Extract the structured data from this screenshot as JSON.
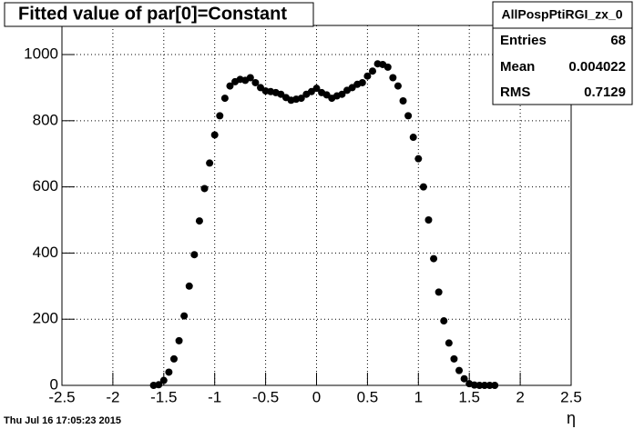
{
  "chart_data": {
    "type": "scatter",
    "title": "Fitted value of par[0]=Constant",
    "x_label": "η",
    "timestamp": "Thu Jul 16 17:05:23 2015",
    "stats": {
      "name": "AllPospPtiRGI_zx_0",
      "rows": [
        [
          "Entries",
          68
        ],
        [
          "Mean",
          0.004022
        ],
        [
          "RMS",
          0.7129
        ]
      ]
    },
    "color": "#000000",
    "xlim": [
      -2.5,
      2.5
    ],
    "ylim": [
      0,
      1088
    ],
    "xticks": [
      -2.5,
      -2,
      -1.5,
      -1,
      -0.5,
      0,
      0.5,
      1,
      1.5,
      2,
      2.5
    ],
    "yticks": [
      0,
      200,
      400,
      600,
      800,
      1000
    ],
    "grid": true,
    "x": [
      -1.6,
      -1.55,
      -1.5,
      -1.45,
      -1.4,
      -1.35,
      -1.3,
      -1.25,
      -1.2,
      -1.15,
      -1.1,
      -1.05,
      -1.0,
      -0.95,
      -0.9,
      -0.85,
      -0.8,
      -0.75,
      -0.7,
      -0.65,
      -0.6,
      -0.55,
      -0.5,
      -0.45,
      -0.4,
      -0.35,
      -0.3,
      -0.25,
      -0.2,
      -0.15,
      -0.1,
      -0.05,
      0,
      0.05,
      0.1,
      0.15,
      0.2,
      0.25,
      0.3,
      0.35,
      0.4,
      0.45,
      0.5,
      0.55,
      0.6,
      0.65,
      0.7,
      0.75,
      0.8,
      0.85,
      0.9,
      0.95,
      1.0,
      1.05,
      1.1,
      1.15,
      1.2,
      1.25,
      1.3,
      1.35,
      1.4,
      1.45,
      1.5,
      1.55,
      1.6,
      1.65,
      1.7,
      1.75
    ],
    "values": [
      0,
      2,
      15,
      40,
      80,
      135,
      210,
      300,
      395,
      497,
      595,
      672,
      757,
      815,
      868,
      905,
      918,
      925,
      922,
      930,
      915,
      900,
      890,
      888,
      885,
      880,
      870,
      862,
      865,
      868,
      880,
      888,
      898,
      885,
      878,
      868,
      875,
      880,
      892,
      900,
      910,
      915,
      935,
      950,
      972,
      970,
      962,
      930,
      905,
      860,
      815,
      750,
      685,
      600,
      500,
      383,
      282,
      195,
      128,
      80,
      45,
      20,
      5,
      1,
      0,
      0,
      0,
      0
    ]
  }
}
